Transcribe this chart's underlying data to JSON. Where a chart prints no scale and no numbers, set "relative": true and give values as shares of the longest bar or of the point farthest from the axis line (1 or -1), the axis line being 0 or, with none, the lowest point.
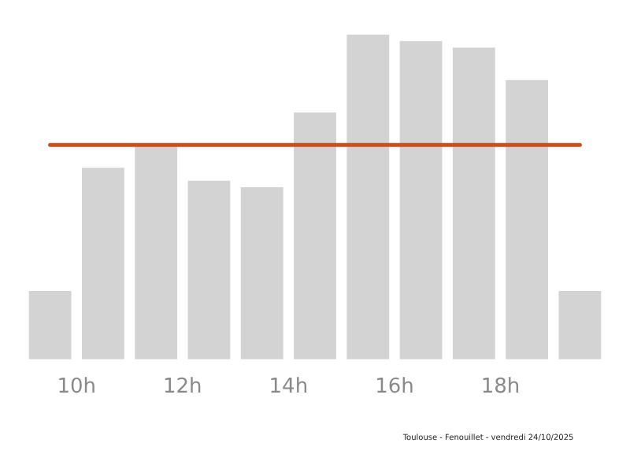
{
  "chart_data": {
    "type": "bar",
    "relative": true,
    "x": [
      9.5,
      10.5,
      11.5,
      12.5,
      13.5,
      14.5,
      15.5,
      16.5,
      17.5,
      18.5,
      19.5
    ],
    "values": [
      0.21,
      0.59,
      0.66,
      0.55,
      0.53,
      0.76,
      1,
      0.98,
      0.96,
      0.86,
      0.21
    ],
    "color": "#d3d3d3",
    "xlim": [
      9,
      20
    ],
    "xticks": [
      {
        "value": 10,
        "label": "10h"
      },
      {
        "value": 12,
        "label": "12h"
      },
      {
        "value": 14,
        "label": "14h"
      },
      {
        "value": 16,
        "label": "16h"
      },
      {
        "value": 18,
        "label": "18h"
      }
    ],
    "ref_lines": [
      {
        "axis": "y",
        "value": 0.66,
        "color": "#c8501e"
      }
    ],
    "annotations": [
      "Toulouse - Fenouillet - vendredi 24/10/2025"
    ],
    "grid": false,
    "legend": false
  }
}
